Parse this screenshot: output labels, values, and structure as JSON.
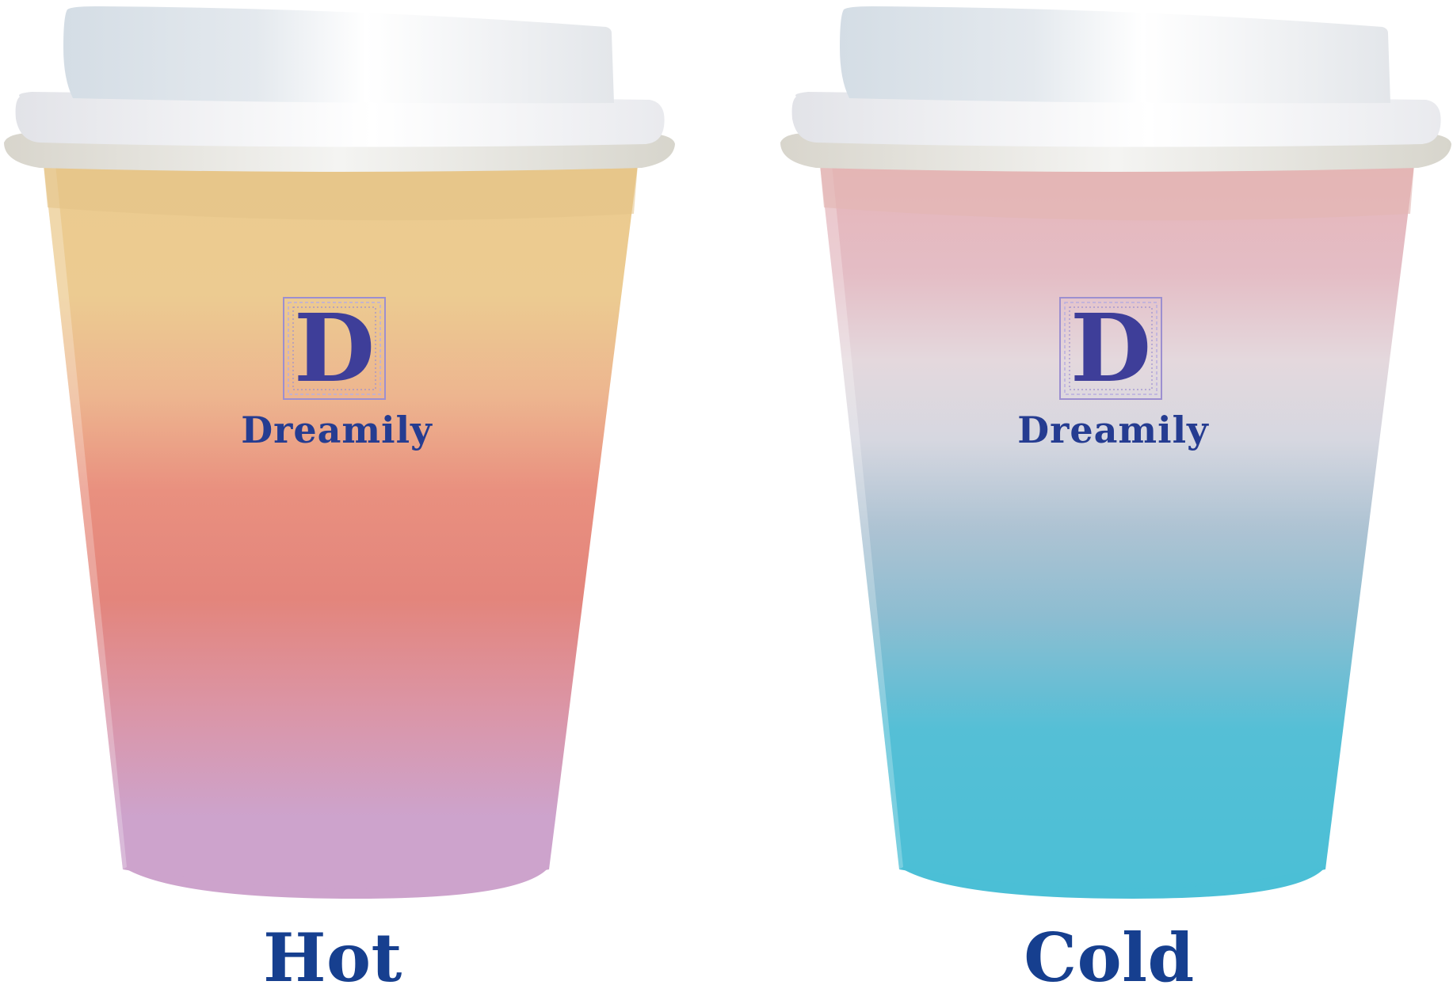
{
  "cups": [
    {
      "id": "hot",
      "brand_letter": "D",
      "brand_name": "Dreamily",
      "caption": "Hot",
      "colors": {
        "top": "#ebcb8f",
        "mid": "#e8897c",
        "bottom": "#cda3cc",
        "brand_text": "#253c91"
      }
    },
    {
      "id": "cold",
      "brand_letter": "D",
      "brand_name": "Dreamily",
      "caption": "Cold",
      "colors": {
        "top": "#e6b7bd",
        "mid": "#e2dde2",
        "bottom": "#4dbfd6",
        "brand_text": "#253c91"
      }
    }
  ],
  "lid_colors": {
    "base": "#e6e7ea",
    "highlight": "#f7f8fa",
    "shadow": "#d2d4d6"
  }
}
